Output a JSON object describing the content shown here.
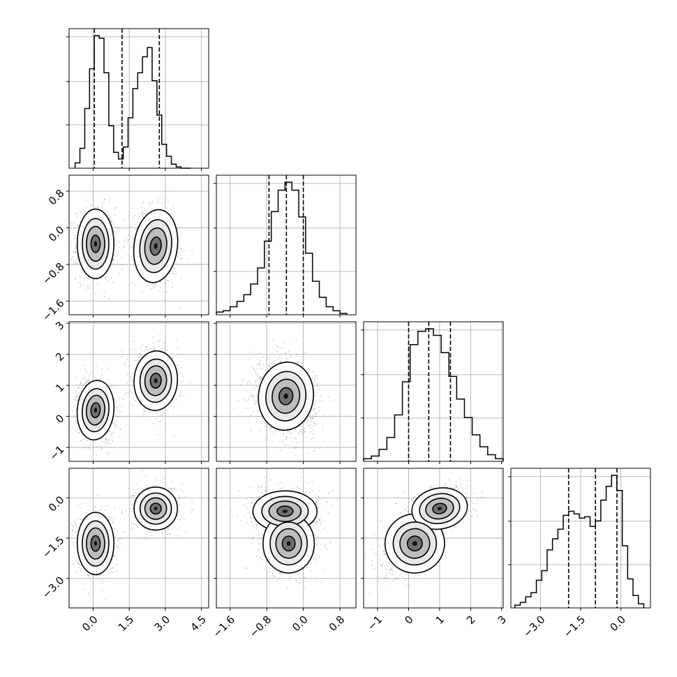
{
  "chart_data": {
    "type": "corner",
    "title": "",
    "grid": true,
    "parameters": [
      {
        "index": 0,
        "range": [
          -1.0,
          4.8
        ],
        "ticks": [
          0.0,
          1.5,
          3.0,
          4.5
        ],
        "tick_labels": [
          "0.0",
          "1.5",
          "3.0",
          "4.5"
        ],
        "quantiles": [
          0.05,
          1.2,
          2.75
        ]
      },
      {
        "index": 1,
        "range": [
          -1.9,
          1.15
        ],
        "ticks": [
          -1.6,
          -0.8,
          0.0,
          0.8
        ],
        "tick_labels": [
          "−1.6",
          "−0.8",
          "0.0",
          "0.8"
        ],
        "quantiles": [
          -0.75,
          -0.37,
          0.0
        ]
      },
      {
        "index": 2,
        "range": [
          -1.45,
          3.05
        ],
        "ticks": [
          -1,
          0,
          1,
          2,
          3
        ],
        "tick_labels": [
          "−1",
          "0",
          "1",
          "2",
          "3"
        ],
        "quantiles": [
          0.0,
          0.65,
          1.35
        ]
      },
      {
        "index": 3,
        "range": [
          -4.1,
          1.1
        ],
        "ticks": [
          -3.0,
          -1.5,
          0.0
        ],
        "tick_labels": [
          "−3.0",
          "−1.5",
          "0.0"
        ],
        "quantiles": [
          -1.95,
          -0.95,
          -0.15
        ]
      }
    ],
    "histograms": [
      {
        "param": 0,
        "bin_edges": [
          -0.75,
          -0.55,
          -0.35,
          -0.15,
          0.05,
          0.25,
          0.45,
          0.65,
          0.85,
          1.05,
          1.25,
          1.45,
          1.65,
          1.85,
          2.05,
          2.25,
          2.45,
          2.65,
          2.85,
          3.05,
          3.25,
          3.45,
          3.65,
          3.85,
          4.05
        ],
        "counts": [
          0.04,
          0.15,
          0.45,
          0.75,
          1.0,
          0.98,
          0.72,
          0.32,
          0.12,
          0.07,
          0.16,
          0.38,
          0.6,
          0.72,
          0.84,
          0.91,
          0.66,
          0.4,
          0.18,
          0.09,
          0.03,
          0.01,
          0.0,
          0.0
        ]
      },
      {
        "param": 1,
        "bin_edges": [
          -1.9,
          -1.75,
          -1.6,
          -1.45,
          -1.3,
          -1.15,
          -1.0,
          -0.85,
          -0.7,
          -0.55,
          -0.4,
          -0.25,
          -0.1,
          0.05,
          0.2,
          0.35,
          0.5,
          0.65,
          0.8,
          0.95
        ],
        "counts": [
          0.02,
          0.03,
          0.06,
          0.1,
          0.15,
          0.23,
          0.35,
          0.55,
          0.77,
          0.93,
          0.99,
          0.93,
          0.73,
          0.46,
          0.25,
          0.13,
          0.06,
          0.03,
          0.01
        ]
      },
      {
        "param": 2,
        "bin_edges": [
          -1.45,
          -1.2,
          -0.95,
          -0.7,
          -0.45,
          -0.2,
          0.05,
          0.3,
          0.55,
          0.8,
          1.05,
          1.3,
          1.55,
          1.8,
          2.05,
          2.3,
          2.55,
          2.8,
          3.05
        ],
        "counts": [
          0.02,
          0.04,
          0.09,
          0.18,
          0.35,
          0.6,
          0.88,
          0.98,
          1.0,
          0.95,
          0.82,
          0.64,
          0.47,
          0.33,
          0.2,
          0.11,
          0.05,
          0.02
        ]
      },
      {
        "param": 3,
        "bin_edges": [
          -3.95,
          -3.75,
          -3.55,
          -3.35,
          -3.15,
          -2.95,
          -2.75,
          -2.55,
          -2.35,
          -2.15,
          -1.95,
          -1.75,
          -1.55,
          -1.35,
          -1.15,
          -0.95,
          -0.75,
          -0.55,
          -0.35,
          -0.15,
          0.05,
          0.25,
          0.45,
          0.65,
          0.85
        ],
        "counts": [
          0.02,
          0.04,
          0.08,
          0.11,
          0.2,
          0.27,
          0.42,
          0.5,
          0.57,
          0.67,
          0.7,
          0.68,
          0.65,
          0.66,
          0.59,
          0.63,
          0.78,
          0.88,
          0.96,
          0.85,
          0.45,
          0.21,
          0.09,
          0.03
        ]
      }
    ],
    "scatter_panels": [
      {
        "x_param": 0,
        "y_param": 1,
        "modes": [
          {
            "x": 0.1,
            "y": -0.35,
            "sx": 0.38,
            "sy": 0.38,
            "rho": 0.0,
            "w": 0.55
          },
          {
            "x": 2.6,
            "y": -0.4,
            "sx": 0.45,
            "sy": 0.4,
            "rho": -0.2,
            "w": 0.45
          }
        ]
      },
      {
        "x_param": 0,
        "y_param": 2,
        "modes": [
          {
            "x": 0.1,
            "y": 0.2,
            "sx": 0.38,
            "sy": 0.48,
            "rho": -0.15,
            "w": 0.55
          },
          {
            "x": 2.6,
            "y": 1.15,
            "sx": 0.45,
            "sy": 0.48,
            "rho": -0.1,
            "w": 0.45
          }
        ]
      },
      {
        "x_param": 1,
        "y_param": 2,
        "modes": [
          {
            "x": -0.38,
            "y": 0.65,
            "sx": 0.3,
            "sy": 0.55,
            "rho": -0.2,
            "w": 1.0
          }
        ]
      },
      {
        "x_param": 0,
        "y_param": 3,
        "modes": [
          {
            "x": 0.1,
            "y": -1.7,
            "sx": 0.38,
            "sy": 0.58,
            "rho": 0.0,
            "w": 0.5
          },
          {
            "x": 2.6,
            "y": -0.4,
            "sx": 0.45,
            "sy": 0.4,
            "rho": 0.0,
            "w": 0.5
          }
        ]
      },
      {
        "x_param": 1,
        "y_param": 3,
        "modes": [
          {
            "x": -0.4,
            "y": -0.5,
            "sx": 0.35,
            "sy": 0.38,
            "rho": 0.0,
            "w": 0.5
          },
          {
            "x": -0.32,
            "y": -1.7,
            "sx": 0.28,
            "sy": 0.55,
            "rho": 0.0,
            "w": 0.5
          }
        ]
      },
      {
        "x_param": 2,
        "y_param": 3,
        "modes": [
          {
            "x": 0.2,
            "y": -1.7,
            "sx": 0.48,
            "sy": 0.55,
            "rho": 0.55,
            "w": 0.5
          },
          {
            "x": 1.0,
            "y": -0.4,
            "sx": 0.45,
            "sy": 0.38,
            "rho": 0.3,
            "w": 0.5
          }
        ]
      }
    ]
  }
}
